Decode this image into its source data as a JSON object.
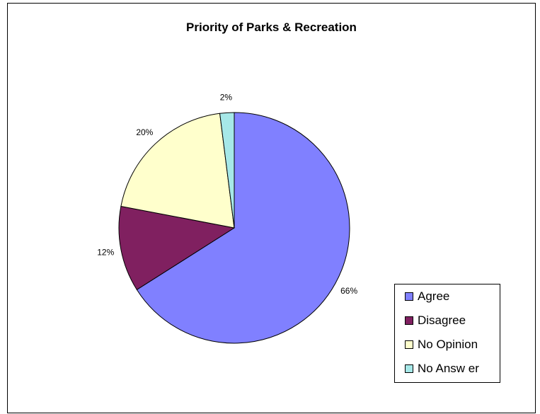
{
  "chart_data": {
    "type": "pie",
    "title": "Priority of Parks & Recreation",
    "categories": [
      "Agree",
      "Disagree",
      "No Opinion",
      "No Answer"
    ],
    "values": [
      66,
      12,
      20,
      2
    ],
    "data_labels": [
      "66%",
      "12%",
      "20%",
      "2%"
    ],
    "legend_labels": [
      "Agree",
      "Disagree",
      "No Opinion",
      "No Answ er"
    ],
    "colors": [
      "#8080ff",
      "#802060",
      "#ffffcc",
      "#a6e8e8"
    ],
    "legend_position": "bottom-right"
  }
}
